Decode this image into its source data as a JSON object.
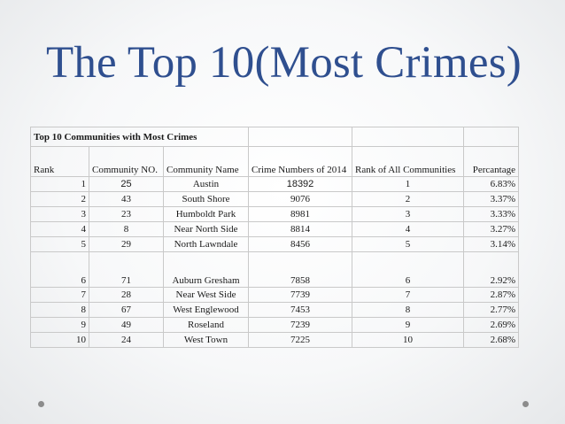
{
  "title": "The Top 10(Most Crimes)",
  "table": {
    "caption": "Top 10 Communities with Most Crimes",
    "headers": [
      "Rank",
      "Community NO.",
      "Community Name",
      "Crime Numbers of 2014",
      "Rank of All Communities",
      "Percantage"
    ],
    "rows": [
      [
        "1",
        "25",
        "Austin",
        "18392",
        "1",
        "6.83%"
      ],
      [
        "2",
        "43",
        "South Shore",
        "9076",
        "2",
        "3.37%"
      ],
      [
        "3",
        "23",
        "Humboldt Park",
        "8981",
        "3",
        "3.33%"
      ],
      [
        "4",
        "8",
        "Near North Side",
        "8814",
        "4",
        "3.27%"
      ],
      [
        "5",
        "29",
        "North Lawndale",
        "8456",
        "5",
        "3.14%"
      ],
      [
        "6",
        "71",
        "Auburn Gresham",
        "7858",
        "6",
        "2.92%"
      ],
      [
        "7",
        "28",
        "Near West Side",
        "7739",
        "7",
        "2.87%"
      ],
      [
        "8",
        "67",
        "West Englewood",
        "7453",
        "8",
        "2.77%"
      ],
      [
        "9",
        "49",
        "Roseland",
        "7239",
        "9",
        "2.69%"
      ],
      [
        "10",
        "24",
        "West Town",
        "7225",
        "10",
        "2.68%"
      ]
    ]
  }
}
